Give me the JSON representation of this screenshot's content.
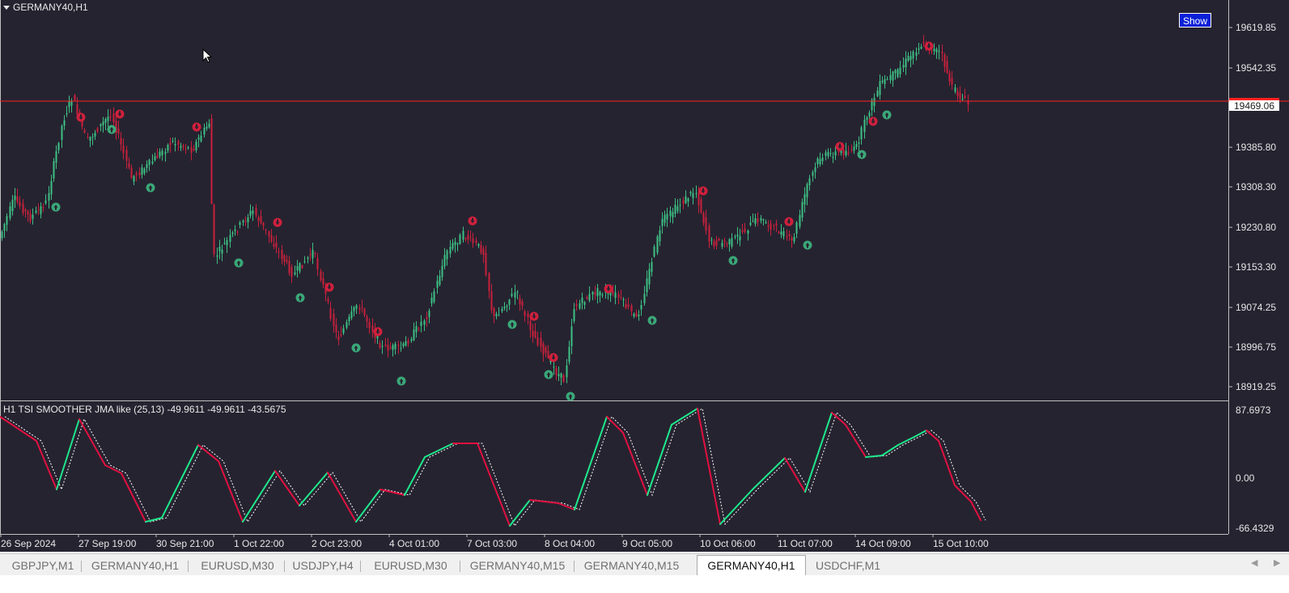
{
  "chart": {
    "symbol_title": "GERMANY40,H1",
    "indicator_title": "H1  TSI SMOOTHER JMA like (25,13) -49.9611 -49.9611 -43.5675",
    "show_button": "Show",
    "current_price": "19469.06",
    "price_ticks": [
      "19619.85",
      "19542.35",
      "19385.80",
      "19308.30",
      "19230.80",
      "19153.30",
      "19074.25",
      "18996.75",
      "18919.25"
    ],
    "indicator_ticks": [
      "87.6973",
      "0.00",
      "-66.4329"
    ],
    "time_labels": [
      "26 Sep 2024",
      "27 Sep 19:00",
      "30 Sep 21:00",
      "1 Oct 22:00",
      "2 Oct 23:00",
      "4 Oct 01:00",
      "7 Oct 03:00",
      "8 Oct 04:00",
      "9 Oct 05:00",
      "10 Oct 06:00",
      "11 Oct 07:00",
      "14 Oct 09:00",
      "15 Oct 10:00"
    ],
    "colors": {
      "background": "#262330",
      "bull": "#3cc084",
      "bear": "#c8203c",
      "price_line": "#ff2020",
      "tsi_up": "#1ee88c",
      "tsi_down": "#e01040",
      "signal": "#ffffff"
    }
  },
  "tabs": {
    "items": [
      "GBPJPY,M1",
      "GERMANY40,H1",
      "EURUSD,M30",
      "USDJPY,H4",
      "EURUSD,M30",
      "GERMANY40,M15",
      "GERMANY40,M15",
      "GERMANY40,H1",
      "USDCHF,M1"
    ],
    "active_index": 7
  }
}
